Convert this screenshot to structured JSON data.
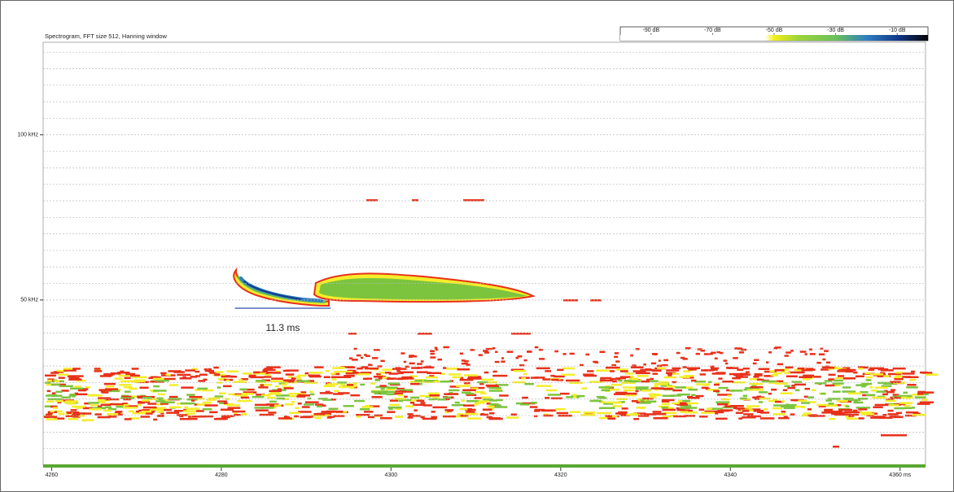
{
  "chart_data": {
    "type": "spectrogram",
    "title": "Spectrogram, FFT size 512, Hanning window",
    "xlim": [
      4259,
      4363
    ],
    "xticks": [
      4260,
      4280,
      4300,
      4320,
      4340,
      {
        "value": 4360,
        "label": "4360 ms"
      }
    ],
    "ylim": [
      0,
      128
    ],
    "yticks": [
      {
        "value": 50,
        "label": "50 kHz"
      },
      {
        "value": 100,
        "label": "100 kHz"
      }
    ],
    "ygrid": [
      5,
      10,
      15,
      20,
      25,
      30,
      35,
      40,
      45,
      55,
      60,
      65,
      70,
      75,
      80,
      85,
      90,
      95,
      105,
      110,
      115,
      120,
      125
    ],
    "colorbar": {
      "lim": [
        -100,
        0
      ],
      "ticks": [
        {
          "value": -90,
          "label": "-90 dB"
        },
        {
          "value": -70,
          "label": "-70 dB"
        },
        {
          "value": -50,
          "label": "-50 dB"
        },
        {
          "value": -30,
          "label": "-30 dB"
        },
        {
          "value": -10,
          "label": "-10 dB"
        }
      ]
    },
    "annotation": {
      "label": "11.3 ms",
      "start": 4281.6,
      "end": 4292.9,
      "freq": 47.5
    }
  }
}
